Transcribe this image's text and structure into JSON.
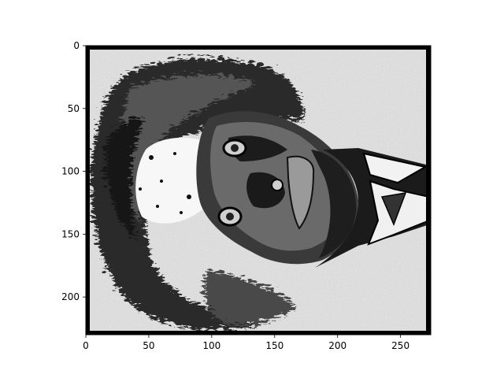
{
  "figure": {
    "description_type": "matplotlib image plot (imshow) of a grayscale edge-enhanced photo rotated 90 degrees",
    "background": "#ffffff",
    "image_palette": {
      "light": "#e6e6e6",
      "mid": "#8c8c8c",
      "dark": "#1a1a1a",
      "black": "#000000",
      "white": "#ffffff"
    }
  },
  "chart_data": {
    "type": "image",
    "title": "",
    "xlabel": "",
    "ylabel": "",
    "xlim": [
      0,
      274
    ],
    "ylim": [
      230,
      0
    ],
    "xticks": [
      0,
      50,
      100,
      150,
      200,
      250
    ],
    "yticks": [
      0,
      50,
      100,
      150,
      200
    ],
    "xtick_labels": [
      "0",
      "50",
      "100",
      "150",
      "200",
      "250"
    ],
    "ytick_labels": [
      "0",
      "50",
      "100",
      "150",
      "200"
    ],
    "grid": false,
    "colormap": "gray"
  }
}
